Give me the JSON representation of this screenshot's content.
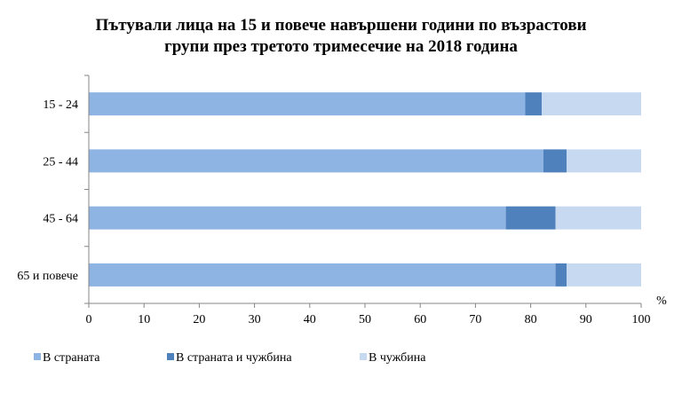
{
  "chart_data": {
    "type": "bar",
    "orientation": "horizontal",
    "stacked": true,
    "title_lines": [
      "Пътували лица на 15 и повече навършени години по възрастови",
      "групи през третото тримесечие на 2018 година"
    ],
    "categories": [
      "15 - 24",
      "25 - 44",
      "45 - 64",
      "65 и повече"
    ],
    "series": [
      {
        "name": "В страната",
        "color": "#8eb4e3",
        "values": [
          79.0,
          82.3,
          75.5,
          84.5
        ]
      },
      {
        "name": "В страната и чужбина",
        "color": "#4f81bd",
        "values": [
          3.0,
          4.2,
          9.0,
          2.0
        ]
      },
      {
        "name": "В чужбина",
        "color": "#c6d9f1",
        "values": [
          18.0,
          13.5,
          15.5,
          13.5
        ]
      }
    ],
    "x_unit": "%",
    "xlim": [
      0,
      100
    ],
    "x_ticks": [
      0,
      10,
      20,
      30,
      40,
      50,
      60,
      70,
      80,
      90,
      100
    ],
    "grid": false,
    "legend_position": "bottom"
  }
}
